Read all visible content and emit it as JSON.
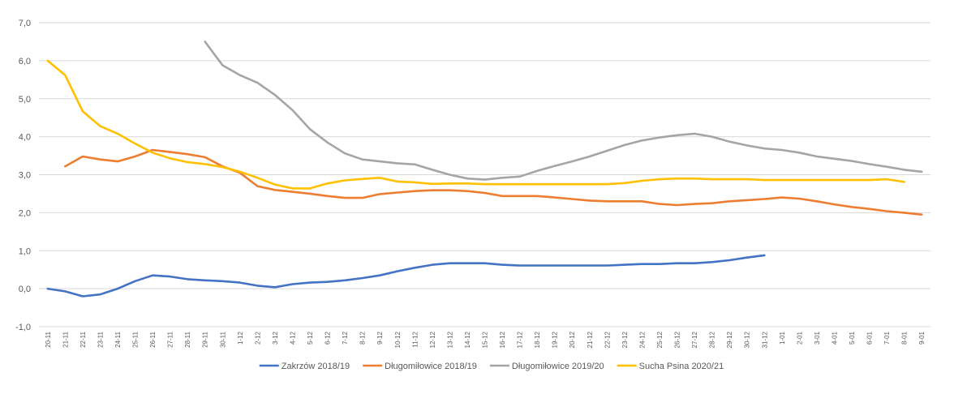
{
  "chart_data": {
    "type": "line",
    "title": "",
    "xlabel": "",
    "ylabel": "",
    "ylim": [
      -1,
      7
    ],
    "yticks": [
      -1,
      0,
      1,
      2,
      3,
      4,
      5,
      6,
      7
    ],
    "ytick_labels": [
      "-1,0",
      "0,0",
      "1,0",
      "2,0",
      "3,0",
      "4,0",
      "5,0",
      "6,0",
      "7,0"
    ],
    "grid": "horizontal",
    "legend_position": "bottom",
    "categories": [
      "20-11",
      "21-11",
      "22-11",
      "23-11",
      "24-11",
      "25-11",
      "26-11",
      "27-11",
      "28-11",
      "29-11",
      "30-11",
      "1-12",
      "2-12",
      "3-12",
      "4-12",
      "5-12",
      "6-12",
      "7-12",
      "8-12",
      "9-12",
      "10-12",
      "11-12",
      "12-12",
      "13-12",
      "14-12",
      "15-12",
      "16-12",
      "17-12",
      "18-12",
      "19-12",
      "20-12",
      "21-12",
      "22-12",
      "23-12",
      "24-12",
      "25-12",
      "26-12",
      "27-12",
      "28-12",
      "29-12",
      "30-12",
      "31-12",
      "1-01",
      "2-01",
      "3-01",
      "4-01",
      "5-01",
      "6-01",
      "7-01",
      "8-01",
      "9-01"
    ],
    "series": [
      {
        "name": "Zakrzów 2018/19",
        "color": "#4472C4",
        "values": [
          0.0,
          -0.07,
          -0.2,
          -0.15,
          0.0,
          0.2,
          0.35,
          0.32,
          0.25,
          0.22,
          0.2,
          0.16,
          0.08,
          0.04,
          0.12,
          0.16,
          0.18,
          0.22,
          0.28,
          0.35,
          0.46,
          0.55,
          0.63,
          0.67,
          0.67,
          0.67,
          0.63,
          0.61,
          0.61,
          0.61,
          0.61,
          0.61,
          0.61,
          0.63,
          0.65,
          0.65,
          0.67,
          0.67,
          0.7,
          0.75,
          0.82,
          0.88,
          null,
          null,
          null,
          null,
          null,
          null,
          null,
          null,
          null
        ]
      },
      {
        "name": "Długomiłowice 2018/19",
        "color": "#ED7D31",
        "values": [
          null,
          3.22,
          3.48,
          3.4,
          3.35,
          3.48,
          3.65,
          3.6,
          3.54,
          3.46,
          3.22,
          3.05,
          2.7,
          2.6,
          2.55,
          2.5,
          2.44,
          2.39,
          2.39,
          2.49,
          2.53,
          2.57,
          2.59,
          2.59,
          2.57,
          2.52,
          2.44,
          2.44,
          2.44,
          2.4,
          2.36,
          2.32,
          2.3,
          2.3,
          2.3,
          2.23,
          2.2,
          2.23,
          2.25,
          2.3,
          2.33,
          2.36,
          2.4,
          2.37,
          2.3,
          2.22,
          2.15,
          2.1,
          2.04,
          2.0,
          1.95
        ]
      },
      {
        "name": "Długomiłowice 2019/20",
        "color": "#A5A5A5",
        "values": [
          null,
          null,
          null,
          null,
          null,
          null,
          null,
          null,
          null,
          6.5,
          5.88,
          5.62,
          5.42,
          5.1,
          4.7,
          4.2,
          3.85,
          3.56,
          3.4,
          3.35,
          3.3,
          3.27,
          3.13,
          3.0,
          2.9,
          2.87,
          2.92,
          2.95,
          3.1,
          3.23,
          3.35,
          3.48,
          3.63,
          3.78,
          3.9,
          3.98,
          4.04,
          4.08,
          4.0,
          3.87,
          3.77,
          3.69,
          3.65,
          3.58,
          3.48,
          3.42,
          3.36,
          3.28,
          3.21,
          3.13,
          3.08
        ]
      },
      {
        "name": "Sucha Psina 2020/21",
        "color": "#FFC000",
        "values": [
          6.0,
          5.62,
          4.67,
          4.28,
          4.08,
          3.82,
          3.58,
          3.43,
          3.33,
          3.28,
          3.2,
          3.08,
          2.92,
          2.74,
          2.64,
          2.64,
          2.77,
          2.85,
          2.89,
          2.92,
          2.82,
          2.8,
          2.76,
          2.77,
          2.77,
          2.75,
          2.75,
          2.75,
          2.75,
          2.75,
          2.75,
          2.75,
          2.75,
          2.78,
          2.84,
          2.88,
          2.9,
          2.9,
          2.88,
          2.88,
          2.88,
          2.86,
          2.86,
          2.86,
          2.86,
          2.86,
          2.86,
          2.86,
          2.88,
          2.81,
          null
        ]
      }
    ]
  }
}
